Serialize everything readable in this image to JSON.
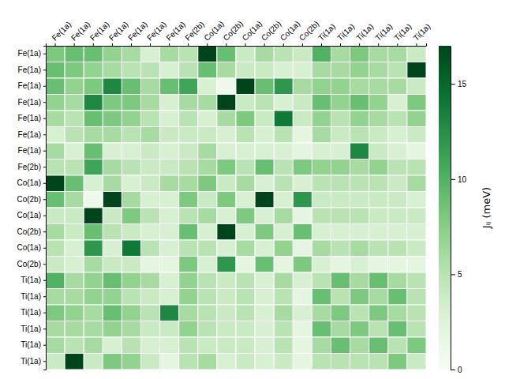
{
  "chart_data": {
    "type": "heatmap",
    "x_categories": [
      "Fe(1a)",
      "Fe(1a)",
      "Fe(1a)",
      "Fe(1a)",
      "Fe(1a)",
      "Fe(1a)",
      "Fe(1a)",
      "Fe(2b)",
      "Co(1a)",
      "Co(2b)",
      "Co(1a)",
      "Co(2b)",
      "Co(1a)",
      "Co(2b)",
      "Ti(1a)",
      "Ti(1a)",
      "Ti(1a)",
      "Ti(1a)",
      "Ti(1a)",
      "Ti(1a)"
    ],
    "y_categories": [
      "Fe(1a)",
      "Fe(1a)",
      "Fe(1a)",
      "Fe(1a)",
      "Fe(1a)",
      "Fe(1a)",
      "Fe(1a)",
      "Fe(2b)",
      "Co(1a)",
      "Co(2b)",
      "Co(1a)",
      "Co(2b)",
      "Co(1a)",
      "Co(2b)",
      "Ti(1a)",
      "Ti(1a)",
      "Ti(1a)",
      "Ti(1a)",
      "Ti(1a)",
      "Ti(1a)"
    ],
    "values": [
      [
        8,
        9,
        9,
        7,
        6,
        3,
        6,
        5,
        17,
        9,
        4,
        6,
        5,
        4,
        10,
        6,
        8,
        6,
        6,
        4
      ],
      [
        9,
        8,
        7,
        6,
        5,
        5,
        3,
        5,
        9,
        6,
        4,
        4,
        3,
        3,
        6,
        6,
        7,
        6,
        5,
        17
      ],
      [
        9,
        7,
        8,
        13,
        9,
        6,
        9,
        11,
        3,
        1,
        17,
        9,
        12,
        6,
        7,
        7,
        6,
        6,
        6,
        4
      ],
      [
        7,
        6,
        13,
        8,
        8,
        6,
        3,
        6,
        6,
        17,
        4,
        5,
        3,
        4,
        9,
        7,
        9,
        7,
        3,
        8
      ],
      [
        6,
        5,
        9,
        8,
        7,
        5,
        3,
        5,
        3,
        6,
        8,
        4,
        14,
        4,
        7,
        5,
        7,
        6,
        5,
        7
      ],
      [
        3,
        5,
        6,
        6,
        5,
        6,
        4,
        4,
        4,
        3,
        5,
        3,
        5,
        2,
        6,
        4,
        5,
        4,
        3,
        4
      ],
      [
        6,
        3,
        9,
        3,
        3,
        4,
        3,
        4,
        6,
        3,
        3,
        3,
        3,
        2,
        3,
        3,
        13,
        4,
        3,
        2
      ],
      [
        5,
        5,
        11,
        6,
        5,
        4,
        4,
        5,
        6,
        8,
        5,
        9,
        5,
        8,
        7,
        7,
        6,
        7,
        5,
        5
      ],
      [
        17,
        9,
        3,
        6,
        3,
        4,
        6,
        6,
        8,
        4,
        6,
        3,
        5,
        3,
        5,
        5,
        5,
        5,
        4,
        6
      ],
      [
        9,
        6,
        1,
        17,
        6,
        3,
        3,
        8,
        4,
        8,
        3,
        17,
        3,
        12,
        4,
        4,
        4,
        4,
        4,
        3
      ],
      [
        4,
        4,
        17,
        4,
        8,
        5,
        3,
        5,
        6,
        3,
        8,
        3,
        6,
        2,
        5,
        5,
        5,
        4,
        4,
        4
      ],
      [
        6,
        4,
        9,
        5,
        4,
        3,
        3,
        9,
        3,
        17,
        3,
        8,
        3,
        9,
        3,
        3,
        3,
        3,
        3,
        3
      ],
      [
        5,
        3,
        12,
        3,
        14,
        5,
        3,
        5,
        5,
        3,
        6,
        3,
        7,
        2,
        6,
        5,
        6,
        5,
        5,
        4
      ],
      [
        4,
        3,
        6,
        4,
        4,
        2,
        2,
        8,
        3,
        12,
        2,
        9,
        2,
        8,
        3,
        2,
        3,
        2,
        2,
        2
      ],
      [
        10,
        6,
        7,
        9,
        7,
        6,
        3,
        7,
        5,
        4,
        5,
        3,
        6,
        3,
        5,
        9,
        6,
        9,
        6,
        5
      ],
      [
        6,
        6,
        7,
        7,
        5,
        4,
        3,
        7,
        5,
        4,
        5,
        3,
        5,
        2,
        9,
        5,
        8,
        6,
        9,
        5
      ],
      [
        8,
        7,
        6,
        9,
        7,
        5,
        13,
        6,
        5,
        4,
        5,
        3,
        6,
        3,
        6,
        8,
        5,
        8,
        6,
        5
      ],
      [
        6,
        6,
        6,
        7,
        6,
        4,
        4,
        7,
        5,
        4,
        4,
        3,
        5,
        2,
        9,
        6,
        8,
        5,
        9,
        5
      ],
      [
        6,
        5,
        6,
        3,
        5,
        3,
        3,
        5,
        4,
        4,
        4,
        3,
        5,
        2,
        6,
        9,
        6,
        9,
        5,
        8
      ],
      [
        4,
        17,
        4,
        8,
        7,
        4,
        2,
        5,
        6,
        3,
        4,
        3,
        4,
        2,
        5,
        5,
        5,
        5,
        8,
        4
      ]
    ],
    "color": "Greens",
    "colorbar": {
      "label": "Jᵢⱼ (meV)",
      "range": [
        0,
        17
      ],
      "ticks": [
        0,
        5,
        10,
        15
      ]
    }
  }
}
